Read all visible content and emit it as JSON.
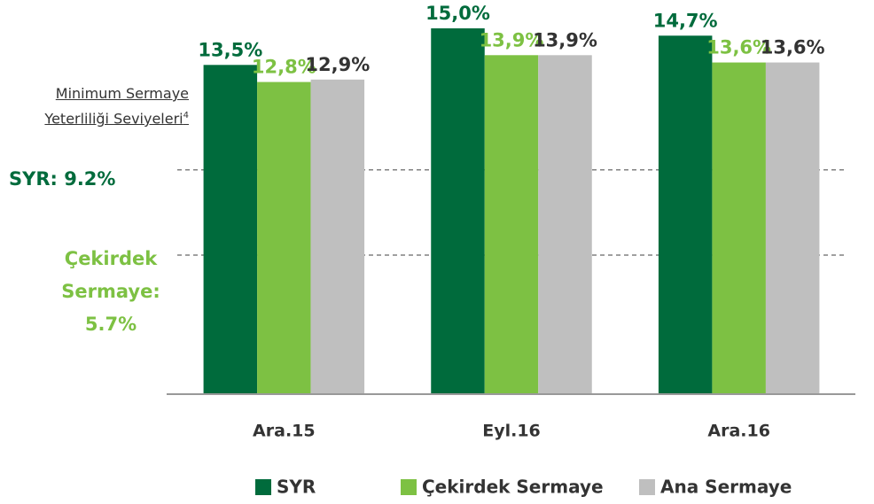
{
  "chart_data": {
    "type": "bar",
    "categories": [
      "Ara.15",
      "Eyl.16",
      "Ara.16"
    ],
    "series": [
      {
        "name": "SYR",
        "color": "#006b3c",
        "values": [
          13.5,
          15.0,
          14.7
        ],
        "value_labels": [
          "13,5%",
          "15,0%",
          "14,7%"
        ]
      },
      {
        "name": "Çekirdek Sermaye",
        "color": "#7dc143",
        "values": [
          12.8,
          13.9,
          13.6
        ],
        "value_labels": [
          "12,8%",
          "13,9%",
          "13,6%"
        ]
      },
      {
        "name": "Ana Sermaye",
        "color": "#bfbfbf",
        "values": [
          12.9,
          13.9,
          13.6
        ],
        "value_labels": [
          "12,9%",
          "13,9%",
          "13,6%"
        ]
      }
    ],
    "ylim": [
      0,
      15
    ],
    "note": "Minimum Sermaye Yeterliliği Seviyeleri",
    "note_sup": "4",
    "reference_lines": [
      {
        "value": 9.2,
        "label": "SYR: 9.2%",
        "color": "#006b3c"
      },
      {
        "value": 5.7,
        "label": "Çekirdek Sermaye: 5.7%",
        "color": "#7dc143"
      }
    ]
  }
}
